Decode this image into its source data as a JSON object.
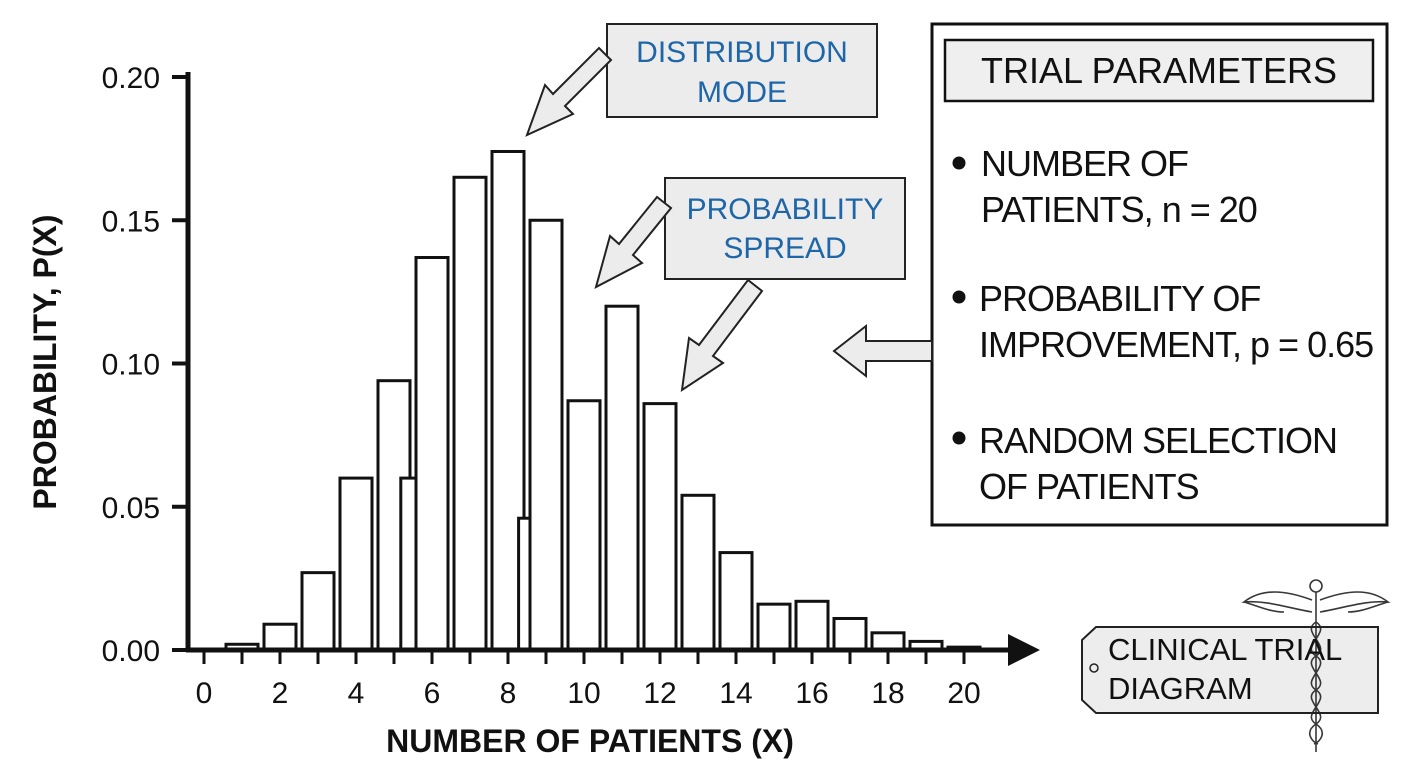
{
  "chart_data": {
    "type": "bar",
    "xlabel": "NUMBER OF PATIENTS (X)",
    "ylabel": "PROBABILITY, P(X)",
    "xlim": [
      0,
      20
    ],
    "ylim": [
      0,
      0.2
    ],
    "x_ticks": [
      "0",
      "2",
      "4",
      "6",
      "8",
      "10",
      "12",
      "14",
      "16",
      "18",
      "20"
    ],
    "y_ticks": [
      "0.00",
      "0.05",
      "0.10",
      "0.15",
      "0.20"
    ],
    "bars": [
      {
        "x": 1.0,
        "value": 0.002
      },
      {
        "x": 2.0,
        "value": 0.009
      },
      {
        "x": 3.0,
        "value": 0.027
      },
      {
        "x": 4.0,
        "value": 0.06
      },
      {
        "x": 5.0,
        "value": 0.094
      },
      {
        "x": 5.6,
        "value": 0.06
      },
      {
        "x": 6.0,
        "value": 0.137
      },
      {
        "x": 7.0,
        "value": 0.165
      },
      {
        "x": 8.0,
        "value": 0.174
      },
      {
        "x": 8.7,
        "value": 0.046
      },
      {
        "x": 9.0,
        "value": 0.15
      },
      {
        "x": 10.0,
        "value": 0.087
      },
      {
        "x": 11.0,
        "value": 0.12
      },
      {
        "x": 12.0,
        "value": 0.086
      },
      {
        "x": 13.0,
        "value": 0.054
      },
      {
        "x": 14.0,
        "value": 0.034
      },
      {
        "x": 15.0,
        "value": 0.016
      },
      {
        "x": 16.0,
        "value": 0.017
      },
      {
        "x": 17.0,
        "value": 0.011
      },
      {
        "x": 18.0,
        "value": 0.006
      },
      {
        "x": 19.0,
        "value": 0.003
      },
      {
        "x": 20.0,
        "value": 0.001
      }
    ],
    "grid": false,
    "annotations": [
      {
        "id": "mode",
        "lines": [
          "DISTRIBUTION",
          "MODE"
        ]
      },
      {
        "id": "spread",
        "lines": [
          "PROBABILITY",
          "SPREAD"
        ]
      }
    ]
  },
  "panel": {
    "title": "TRIAL PARAMETERS",
    "items": [
      {
        "lines": [
          "NUMBER OF",
          "PATIENTS, n = 20"
        ]
      },
      {
        "lines": [
          "PROBABILITY OF",
          "IMPROVEMENT, p = 0.65"
        ]
      },
      {
        "lines": [
          "RANDOM SELECTION",
          "OF PATIENTS"
        ]
      }
    ]
  },
  "tag": {
    "lines": [
      "CLINICAL TRIAL",
      "DIAGRAM"
    ],
    "icon": "caduceus-icon"
  }
}
